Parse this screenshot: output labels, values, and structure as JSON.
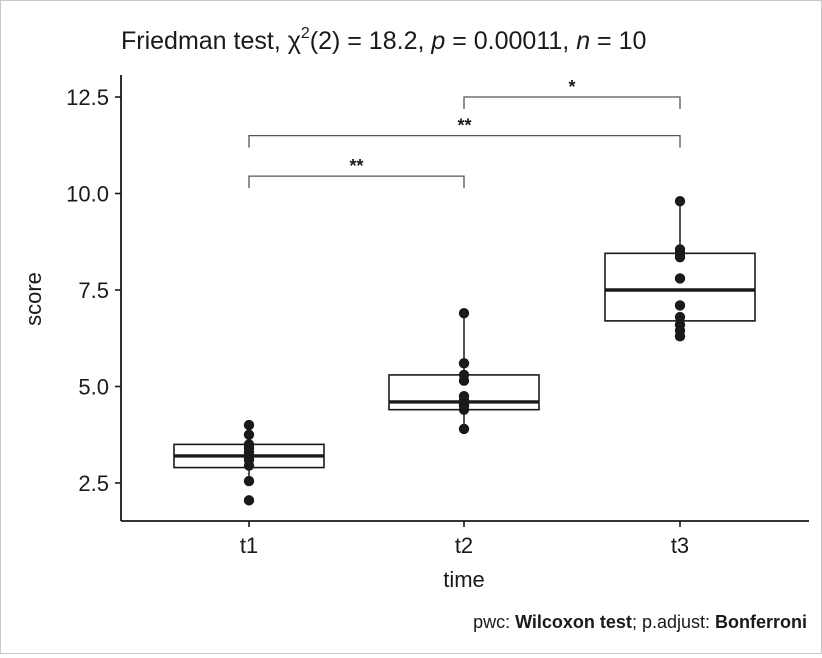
{
  "chart_data": {
    "type": "box",
    "title": {
      "prefix": "Friedman test, ",
      "chi": "χ",
      "chi_sup": "2",
      "df": "(2) = 18.2, ",
      "p_label": "p",
      "p_value": " = 0.00011, ",
      "n_label": "n",
      "n_value": " = 10"
    },
    "xlabel": "time",
    "ylabel": "score",
    "ylim": [
      1.5,
      13.0
    ],
    "yticks": [
      2.5,
      5.0,
      7.5,
      10.0,
      12.5
    ],
    "ytick_labels": [
      "2.5",
      "5.0",
      "7.5",
      "10.0",
      "12.5"
    ],
    "categories": [
      "t1",
      "t2",
      "t3"
    ],
    "boxes": [
      {
        "category": "t1",
        "q1": 2.9,
        "median": 3.2,
        "q3": 3.5,
        "whisker_low": 2.5,
        "whisker_high": 4.0
      },
      {
        "category": "t2",
        "q1": 4.4,
        "median": 4.6,
        "q3": 5.3,
        "whisker_low": 3.9,
        "whisker_high": 6.9
      },
      {
        "category": "t3",
        "q1": 6.7,
        "median": 7.5,
        "q3": 8.45,
        "whisker_low": 6.3,
        "whisker_high": 9.8
      }
    ],
    "points": [
      {
        "category": "t1",
        "values": [
          2.05,
          2.55,
          2.95,
          3.1,
          3.2,
          3.3,
          3.4,
          3.5,
          3.75,
          4.0
        ]
      },
      {
        "category": "t2",
        "values": [
          3.9,
          4.4,
          4.5,
          4.55,
          4.65,
          4.75,
          5.15,
          5.3,
          5.6,
          6.9
        ]
      },
      {
        "category": "t3",
        "values": [
          6.3,
          6.45,
          6.6,
          6.8,
          7.1,
          7.8,
          8.35,
          8.45,
          8.55,
          9.8
        ]
      }
    ],
    "comparisons": [
      {
        "from": "t1",
        "to": "t2",
        "y": 10.45,
        "label": "**"
      },
      {
        "from": "t1",
        "to": "t3",
        "y": 11.5,
        "label": "**"
      },
      {
        "from": "t2",
        "to": "t3",
        "y": 12.5,
        "label": "*"
      }
    ],
    "caption": {
      "pwc_label": "pwc: ",
      "pwc_value": "Wilcoxon test",
      "sep": "; p.adjust: ",
      "adjust_value": "Bonferroni"
    },
    "grid": false,
    "colors": {
      "ink": "#1a1a1a",
      "box_fill": "#ffffff"
    }
  }
}
